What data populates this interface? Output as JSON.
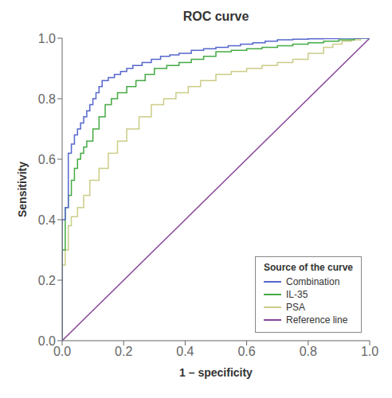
{
  "chart_data": {
    "type": "line",
    "title": "ROC curve",
    "xlabel": "1 – specificity",
    "ylabel": "Sensitivity",
    "xlim": [
      0.0,
      1.0
    ],
    "ylim": [
      0.0,
      1.0
    ],
    "xticks": [
      {
        "value": 0.0,
        "label": "0.0"
      },
      0.2,
      0.4,
      0.6,
      0.8,
      {
        "value": 1.0,
        "label": "1.0"
      }
    ],
    "yticks": [
      {
        "value": 0.0,
        "label": "0.0"
      },
      0.2,
      0.4,
      0.6,
      0.8,
      {
        "value": 1.0,
        "label": "1.0"
      }
    ],
    "grid": false,
    "legend": "lower right",
    "legend_title": "Source of the curve",
    "series": [
      {
        "name": "Combination",
        "color": "#5566cc",
        "x": [
          0.0,
          0.0,
          0.01,
          0.01,
          0.02,
          0.02,
          0.03,
          0.03,
          0.04,
          0.04,
          0.05,
          0.05,
          0.06,
          0.06,
          0.07,
          0.07,
          0.08,
          0.08,
          0.09,
          0.09,
          0.1,
          0.1,
          0.11,
          0.11,
          0.12,
          0.12,
          0.13,
          0.13,
          0.15,
          0.15,
          0.17,
          0.17,
          0.19,
          0.19,
          0.21,
          0.21,
          0.23,
          0.23,
          0.26,
          0.26,
          0.29,
          0.29,
          0.32,
          0.32,
          0.35,
          0.35,
          0.38,
          0.38,
          0.42,
          0.42,
          0.46,
          0.46,
          0.5,
          0.5,
          0.54,
          0.54,
          0.58,
          0.58,
          0.62,
          0.62,
          0.66,
          0.66,
          0.7,
          0.7,
          0.75,
          0.75,
          0.8,
          0.8,
          0.85,
          0.85,
          0.9,
          0.9,
          0.95,
          0.95,
          1.0
        ],
        "values": [
          0.0,
          0.4,
          0.4,
          0.44,
          0.44,
          0.62,
          0.62,
          0.65,
          0.65,
          0.68,
          0.68,
          0.7,
          0.7,
          0.72,
          0.72,
          0.74,
          0.74,
          0.76,
          0.76,
          0.78,
          0.78,
          0.8,
          0.8,
          0.82,
          0.82,
          0.84,
          0.84,
          0.86,
          0.86,
          0.87,
          0.87,
          0.88,
          0.88,
          0.89,
          0.89,
          0.9,
          0.9,
          0.91,
          0.91,
          0.92,
          0.92,
          0.93,
          0.93,
          0.94,
          0.94,
          0.945,
          0.945,
          0.95,
          0.95,
          0.96,
          0.96,
          0.965,
          0.965,
          0.97,
          0.97,
          0.975,
          0.975,
          0.98,
          0.98,
          0.985,
          0.985,
          0.99,
          0.99,
          0.995,
          0.995,
          0.997,
          0.997,
          0.998,
          0.998,
          0.999,
          0.999,
          1.0,
          1.0,
          1.0,
          1.0
        ]
      },
      {
        "name": "IL-35",
        "color": "#44aa44",
        "x": [
          0.0,
          0.0,
          0.01,
          0.01,
          0.02,
          0.02,
          0.03,
          0.03,
          0.04,
          0.04,
          0.05,
          0.05,
          0.06,
          0.06,
          0.07,
          0.07,
          0.08,
          0.08,
          0.1,
          0.1,
          0.12,
          0.12,
          0.14,
          0.14,
          0.16,
          0.16,
          0.18,
          0.18,
          0.21,
          0.21,
          0.24,
          0.24,
          0.27,
          0.27,
          0.3,
          0.3,
          0.34,
          0.34,
          0.38,
          0.38,
          0.42,
          0.42,
          0.46,
          0.46,
          0.5,
          0.5,
          0.55,
          0.55,
          0.6,
          0.6,
          0.65,
          0.65,
          0.7,
          0.7,
          0.75,
          0.75,
          0.8,
          0.8,
          0.85,
          0.85,
          0.9,
          0.9,
          0.95,
          0.95,
          1.0
        ],
        "values": [
          0.0,
          0.3,
          0.3,
          0.44,
          0.44,
          0.48,
          0.48,
          0.53,
          0.53,
          0.57,
          0.57,
          0.6,
          0.6,
          0.62,
          0.62,
          0.64,
          0.64,
          0.66,
          0.66,
          0.7,
          0.7,
          0.74,
          0.74,
          0.78,
          0.78,
          0.8,
          0.8,
          0.82,
          0.82,
          0.84,
          0.84,
          0.86,
          0.86,
          0.88,
          0.88,
          0.9,
          0.9,
          0.91,
          0.91,
          0.92,
          0.92,
          0.93,
          0.93,
          0.94,
          0.94,
          0.955,
          0.955,
          0.96,
          0.96,
          0.965,
          0.965,
          0.97,
          0.97,
          0.975,
          0.975,
          0.98,
          0.98,
          0.985,
          0.985,
          0.99,
          0.99,
          0.995,
          0.995,
          1.0,
          1.0
        ]
      },
      {
        "name": "PSA",
        "color": "#cccc88",
        "x": [
          0.0,
          0.0,
          0.01,
          0.01,
          0.02,
          0.02,
          0.03,
          0.03,
          0.05,
          0.05,
          0.07,
          0.07,
          0.09,
          0.09,
          0.12,
          0.12,
          0.15,
          0.15,
          0.18,
          0.18,
          0.21,
          0.21,
          0.25,
          0.25,
          0.29,
          0.29,
          0.33,
          0.33,
          0.37,
          0.37,
          0.41,
          0.41,
          0.45,
          0.45,
          0.5,
          0.5,
          0.55,
          0.55,
          0.6,
          0.6,
          0.65,
          0.65,
          0.7,
          0.7,
          0.75,
          0.75,
          0.8,
          0.8,
          0.85,
          0.85,
          0.88,
          0.88,
          0.91,
          0.91,
          0.94,
          0.94,
          0.97,
          0.97,
          1.0
        ],
        "values": [
          0.0,
          0.25,
          0.25,
          0.3,
          0.3,
          0.38,
          0.38,
          0.41,
          0.41,
          0.44,
          0.44,
          0.48,
          0.48,
          0.53,
          0.53,
          0.57,
          0.57,
          0.62,
          0.62,
          0.66,
          0.66,
          0.7,
          0.7,
          0.74,
          0.74,
          0.78,
          0.78,
          0.8,
          0.8,
          0.82,
          0.82,
          0.84,
          0.84,
          0.86,
          0.86,
          0.88,
          0.88,
          0.89,
          0.89,
          0.9,
          0.9,
          0.91,
          0.91,
          0.92,
          0.92,
          0.93,
          0.93,
          0.95,
          0.95,
          0.97,
          0.97,
          0.98,
          0.98,
          0.99,
          0.99,
          0.995,
          0.995,
          1.0,
          1.0
        ]
      },
      {
        "name": "Reference line",
        "color": "#884499",
        "x": [
          0,
          1
        ],
        "values": [
          0,
          1
        ]
      }
    ]
  }
}
